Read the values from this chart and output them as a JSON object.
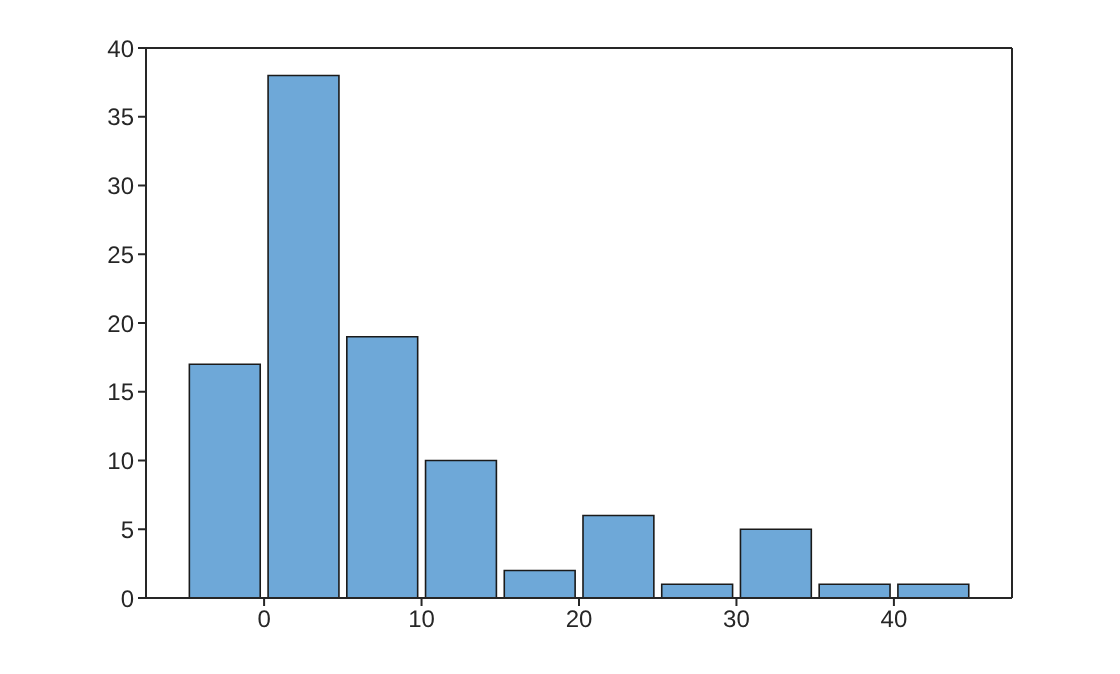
{
  "chart_data": {
    "type": "histogram",
    "bins": [
      -5,
      0,
      5,
      10,
      15,
      20,
      25,
      30,
      35,
      40,
      45
    ],
    "values": [
      17,
      38,
      19,
      10,
      2,
      6,
      1,
      5,
      1,
      1
    ],
    "color": "#6ea8d8",
    "xlim": [
      -7.5,
      47.5
    ],
    "xticks": [
      0,
      10,
      20,
      30,
      40
    ],
    "ylim": [
      0,
      40
    ],
    "yticks": [
      0,
      5,
      10,
      15,
      20,
      25,
      30,
      35,
      40
    ],
    "grid": false
  }
}
